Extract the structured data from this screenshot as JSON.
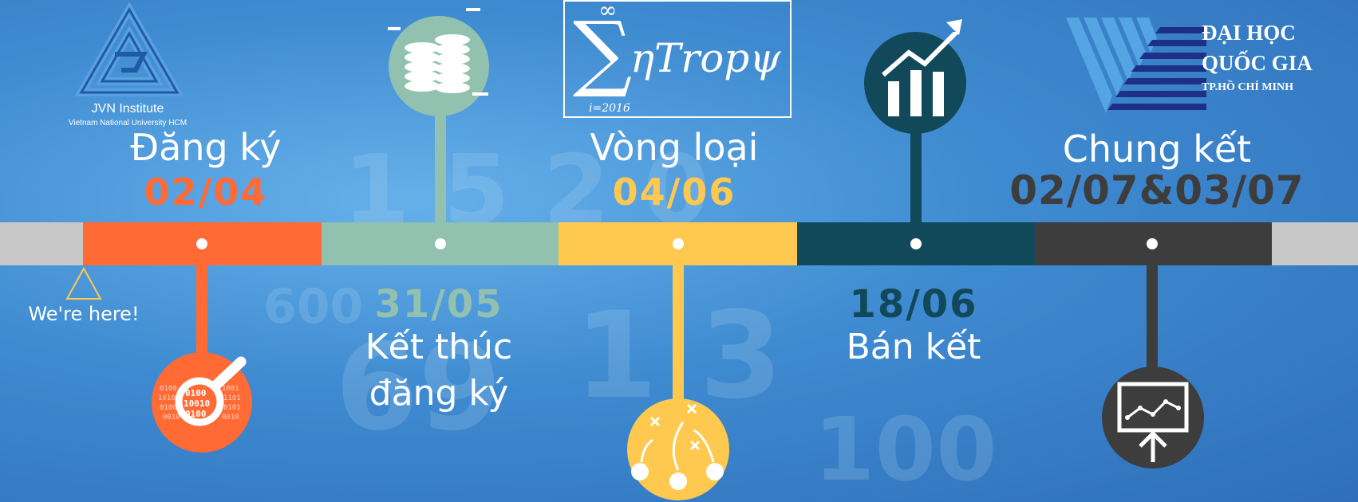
{
  "jvn_logo": {
    "title": "JVN Institute",
    "subtitle": "Vietnam National University HCM"
  },
  "entropy_logo": {
    "word": "ηTropψ",
    "sigma": "∑",
    "upper": "∞",
    "lower": "i=2016"
  },
  "vnu_logo": {
    "line1": "ĐẠI HỌC",
    "line2": "QUỐC GIA",
    "line3": "TP.HỒ CHÍ MINH"
  },
  "timeline": {
    "marker": "We're here!",
    "stages": [
      {
        "label": "Đăng ký",
        "date": "02/04",
        "color": "#ff6a35"
      },
      {
        "label_line1": "Kết thúc",
        "label_line2": "đăng ký",
        "date": "31/05",
        "color": "#93c1b0"
      },
      {
        "label": "Vòng loại",
        "date": "04/06",
        "color": "#ffc94f"
      },
      {
        "label": "Bán kết",
        "date": "18/06",
        "color": "#12495a"
      },
      {
        "label": "Chung kết",
        "date": "02/07&03/07",
        "color": "#3d3d3d"
      }
    ],
    "track_end_color": "#c8c8c8"
  }
}
